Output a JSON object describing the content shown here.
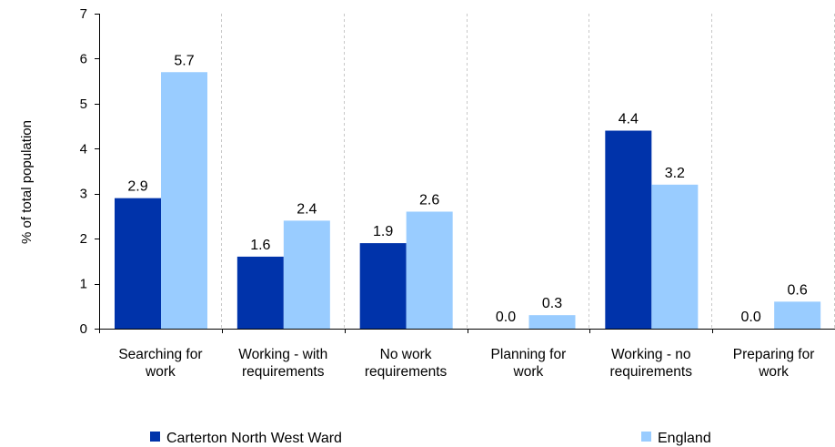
{
  "chart_data": {
    "type": "bar",
    "categories": [
      [
        "Searching for",
        "work"
      ],
      [
        "Working - with",
        "requirements"
      ],
      [
        "No work",
        "requirements"
      ],
      [
        "Planning for",
        "work"
      ],
      [
        "Working - no",
        "requirements"
      ],
      [
        "Preparing for",
        "work"
      ]
    ],
    "series": [
      {
        "name": "Carterton North West Ward",
        "color": "#0033aa",
        "values": [
          2.9,
          1.6,
          1.9,
          0.0,
          4.4,
          0.0
        ],
        "labels": [
          "2.9",
          "1.6",
          "1.9",
          "0.0",
          "4.4",
          "0.0"
        ]
      },
      {
        "name": "England",
        "color": "#99ccff",
        "values": [
          5.7,
          2.4,
          2.6,
          0.3,
          3.2,
          0.6
        ],
        "labels": [
          "5.7",
          "2.4",
          "2.6",
          "0.3",
          "3.2",
          "0.6"
        ]
      }
    ],
    "ylabel": "% of total population",
    "ylim": [
      0,
      7
    ],
    "yticks": [
      "0",
      "1",
      "2",
      "3",
      "4",
      "5",
      "6",
      "7"
    ],
    "grid": "vertical dashed separators between categories",
    "legend_position": "bottom"
  }
}
